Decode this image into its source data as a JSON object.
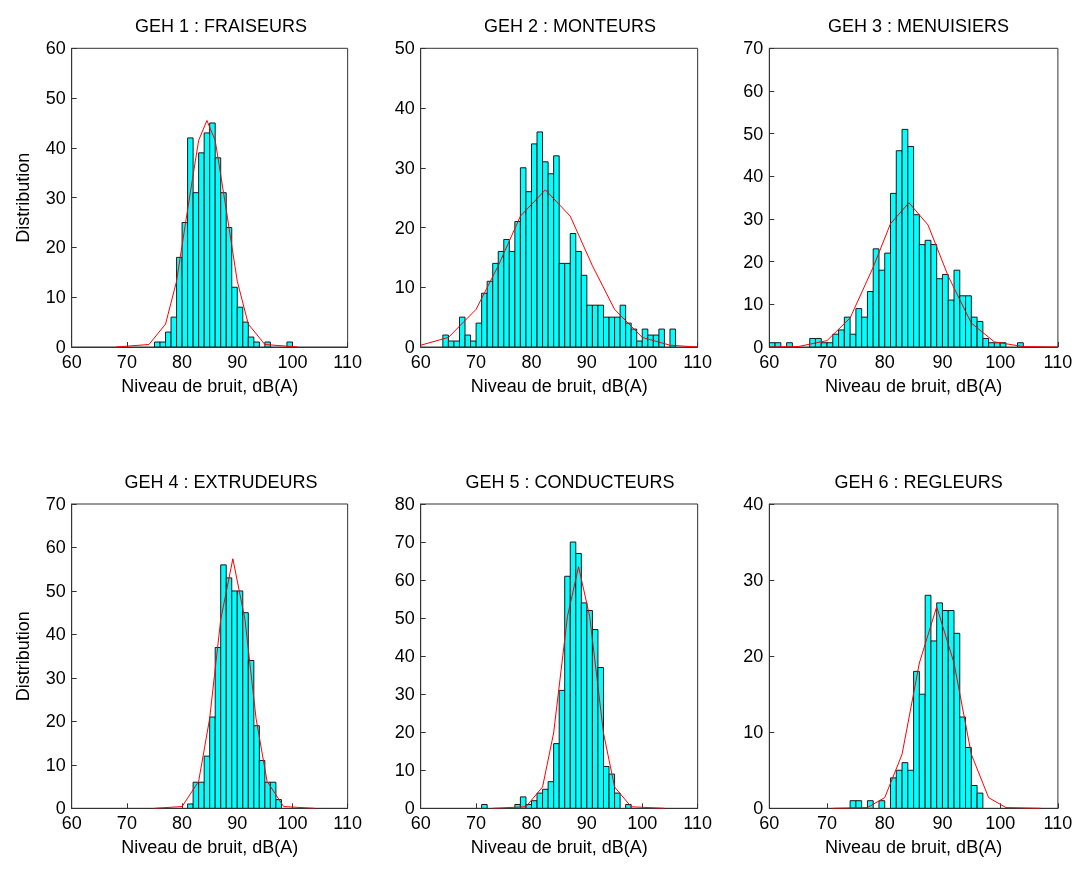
{
  "chart_data": [
    {
      "type": "histogram",
      "title": "GEH 1 : FRAISEURS",
      "xlabel": "Niveau de bruit, dB(A)",
      "ylabel": "Distribution",
      "xlim": [
        60,
        110
      ],
      "xticks": [
        60,
        70,
        80,
        90,
        100,
        110
      ],
      "ylim": [
        0,
        60
      ],
      "yticks": [
        0,
        10,
        20,
        30,
        40,
        50,
        60
      ],
      "grid": false,
      "series": [
        {
          "color": "#00ffff",
          "bins": [
            75,
            76,
            77,
            78,
            79,
            80,
            81,
            82,
            83,
            84,
            85,
            86,
            87,
            88,
            89,
            90,
            91,
            92,
            93,
            94,
            95,
            96,
            97,
            98,
            99,
            100
          ],
          "values": [
            1,
            1,
            3,
            6,
            18,
            25,
            42,
            31,
            39,
            43,
            45,
            38,
            31,
            24,
            12,
            8,
            5,
            2,
            1,
            0,
            1,
            0,
            0,
            0,
            1
          ]
        },
        {
          "type": "line",
          "color": "#ff0000",
          "x": [
            68,
            74,
            77,
            79,
            81,
            83,
            84.5,
            86,
            88,
            90,
            92,
            95,
            101
          ],
          "values": [
            0,
            0.5,
            4.6,
            13.2,
            27.6,
            41.5,
            45.5,
            41.5,
            27.6,
            13.2,
            4.6,
            0.5,
            0
          ]
        }
      ]
    },
    {
      "type": "histogram",
      "title": "GEH 2 : MONTEURS",
      "xlabel": "Niveau de bruit, dB(A)",
      "xlim": [
        60,
        110
      ],
      "xticks": [
        60,
        70,
        80,
        90,
        100,
        110
      ],
      "ylim": [
        0,
        50
      ],
      "yticks": [
        0,
        10,
        20,
        30,
        40,
        50
      ],
      "grid": false,
      "series": [
        {
          "color": "#00ffff",
          "bins": [
            64,
            65,
            66,
            67,
            68,
            69,
            70,
            71,
            72,
            73,
            74,
            75,
            76,
            77,
            78,
            79,
            80,
            81,
            82,
            83,
            84,
            85,
            86,
            87,
            88,
            89,
            90,
            91,
            92,
            93,
            94,
            95,
            96,
            97,
            98,
            99,
            100,
            101,
            102,
            103,
            104,
            105,
            106
          ],
          "values": [
            2,
            1,
            1,
            5,
            2,
            1,
            4,
            9,
            11,
            14,
            16,
            18,
            16,
            21,
            30,
            26,
            34,
            36,
            31,
            29,
            32,
            14,
            14,
            19,
            16,
            12,
            7,
            7,
            7,
            5,
            5,
            5,
            7,
            4,
            3,
            1,
            3,
            2,
            2,
            3,
            0,
            3
          ]
        },
        {
          "type": "line",
          "color": "#ff0000",
          "x": [
            60,
            65,
            70,
            74,
            78,
            82.5,
            87,
            91,
            95,
            100,
            105,
            110
          ],
          "values": [
            0.3,
            1.6,
            6.3,
            13.6,
            21.9,
            26.3,
            21.9,
            13.6,
            6.3,
            1.6,
            0.3,
            0
          ]
        }
      ]
    },
    {
      "type": "histogram",
      "title": "GEH 3 : MENUISIERS",
      "xlabel": "Niveau de bruit, dB(A)",
      "xlim": [
        60,
        110
      ],
      "xticks": [
        60,
        70,
        80,
        90,
        100,
        110
      ],
      "ylim": [
        0,
        70
      ],
      "yticks": [
        0,
        10,
        20,
        30,
        40,
        50,
        60,
        70
      ],
      "grid": false,
      "series": [
        {
          "color": "#00ffff",
          "bins": [
            60,
            61,
            62,
            63,
            64,
            65,
            66,
            67,
            68,
            69,
            70,
            71,
            72,
            73,
            74,
            75,
            76,
            77,
            78,
            79,
            80,
            81,
            82,
            83,
            84,
            85,
            86,
            87,
            88,
            89,
            90,
            91,
            92,
            93,
            94,
            95,
            96,
            97,
            98,
            99,
            100,
            101,
            102,
            103,
            104
          ],
          "values": [
            1,
            1,
            0,
            1,
            0,
            0,
            0,
            2,
            2,
            1,
            1,
            3,
            4,
            7,
            3,
            9,
            7,
            13,
            23,
            18,
            22,
            36,
            46,
            51,
            47,
            31,
            24,
            25,
            24,
            16,
            17,
            11,
            18,
            12,
            12,
            7,
            6,
            2,
            1,
            1,
            1,
            0,
            0,
            1
          ]
        },
        {
          "type": "line",
          "color": "#ff0000",
          "x": [
            60,
            65,
            70,
            74,
            78,
            81,
            84.2,
            87.5,
            91,
            95,
            99,
            104,
            110
          ],
          "values": [
            0,
            0.1,
            1.5,
            6.8,
            18.7,
            28.9,
            33.8,
            28.6,
            16.6,
            5.6,
            1.2,
            0.1,
            0
          ]
        }
      ]
    },
    {
      "type": "histogram",
      "title": "GEH 4 : EXTRUDEURS",
      "xlabel": "Niveau de bruit, dB(A)",
      "ylabel": "Distribution",
      "xlim": [
        60,
        110
      ],
      "xticks": [
        60,
        70,
        80,
        90,
        100,
        110
      ],
      "ylim": [
        0,
        70
      ],
      "yticks": [
        0,
        10,
        20,
        30,
        40,
        50,
        60,
        70
      ],
      "grid": false,
      "series": [
        {
          "color": "#00ffff",
          "bins": [
            81,
            82,
            83,
            84,
            85,
            86,
            87,
            88,
            89,
            90,
            91,
            92,
            93,
            94,
            95,
            96,
            97,
            98
          ],
          "values": [
            1,
            6,
            6,
            12,
            21,
            37,
            56,
            53,
            50,
            50,
            45,
            34,
            19,
            11,
            6,
            6,
            2
          ]
        },
        {
          "type": "line",
          "color": "#ff0000",
          "x": [
            75,
            80,
            83,
            85,
            87,
            89.2,
            91.4,
            93.4,
            95.4,
            98.4,
            104
          ],
          "values": [
            0,
            0.4,
            6.2,
            20.7,
            43.4,
            57.4,
            43.4,
            20.7,
            6.2,
            0.4,
            0
          ]
        }
      ]
    },
    {
      "type": "histogram",
      "title": "GEH 5 : CONDUCTEURS",
      "xlabel": "Niveau de bruit, dB(A)",
      "xlim": [
        60,
        110
      ],
      "xticks": [
        60,
        70,
        80,
        90,
        100,
        110
      ],
      "ylim": [
        0,
        80
      ],
      "yticks": [
        0,
        10,
        20,
        30,
        40,
        50,
        60,
        70,
        80
      ],
      "grid": false,
      "series": [
        {
          "color": "#00ffff",
          "bins": [
            71,
            72,
            73,
            74,
            75,
            76,
            77,
            78,
            79,
            80,
            81,
            82,
            83,
            84,
            85,
            86,
            87,
            88,
            89,
            90,
            91,
            92,
            93,
            94,
            95,
            96,
            97,
            98
          ],
          "values": [
            1,
            0,
            0,
            0,
            0,
            0,
            1,
            3,
            1,
            2,
            4,
            5,
            7,
            17,
            31,
            61,
            70,
            67,
            54,
            52,
            47,
            37,
            11,
            9,
            4,
            0,
            1
          ]
        },
        {
          "type": "line",
          "color": "#ff0000",
          "x": [
            73,
            79,
            82,
            84,
            86.5,
            88.5,
            90.5,
            93,
            95,
            98,
            104
          ],
          "values": [
            0,
            0.4,
            5.6,
            19.8,
            50.5,
            63.5,
            50.5,
            19.8,
            5.6,
            0.4,
            0
          ]
        }
      ]
    },
    {
      "type": "histogram",
      "title": "GEH 6 : REGLEURS",
      "xlabel": "Niveau de bruit, dB(A)",
      "xlim": [
        60,
        110
      ],
      "xticks": [
        60,
        70,
        80,
        90,
        100,
        110
      ],
      "ylim": [
        0,
        40
      ],
      "yticks": [
        0,
        10,
        20,
        30,
        40
      ],
      "grid": false,
      "series": [
        {
          "color": "#00ffff",
          "bins": [
            74,
            75,
            76,
            77,
            78,
            79,
            80,
            81,
            82,
            83,
            84,
            85,
            86,
            87,
            88,
            89,
            90,
            91,
            92,
            93,
            94,
            95,
            96,
            97
          ],
          "values": [
            1,
            1,
            0,
            1,
            0,
            1,
            0,
            4,
            5,
            6,
            5,
            18,
            15,
            28,
            22,
            27,
            26,
            26,
            23,
            12,
            8,
            3,
            2
          ]
        },
        {
          "type": "line",
          "color": "#ff0000",
          "x": [
            71,
            77,
            80,
            83,
            86,
            89,
            92,
            95,
            98,
            101,
            107
          ],
          "values": [
            0,
            0.1,
            1.4,
            7.1,
            19.1,
            26.5,
            19.1,
            7.1,
            1.4,
            0.1,
            0
          ]
        }
      ]
    }
  ]
}
